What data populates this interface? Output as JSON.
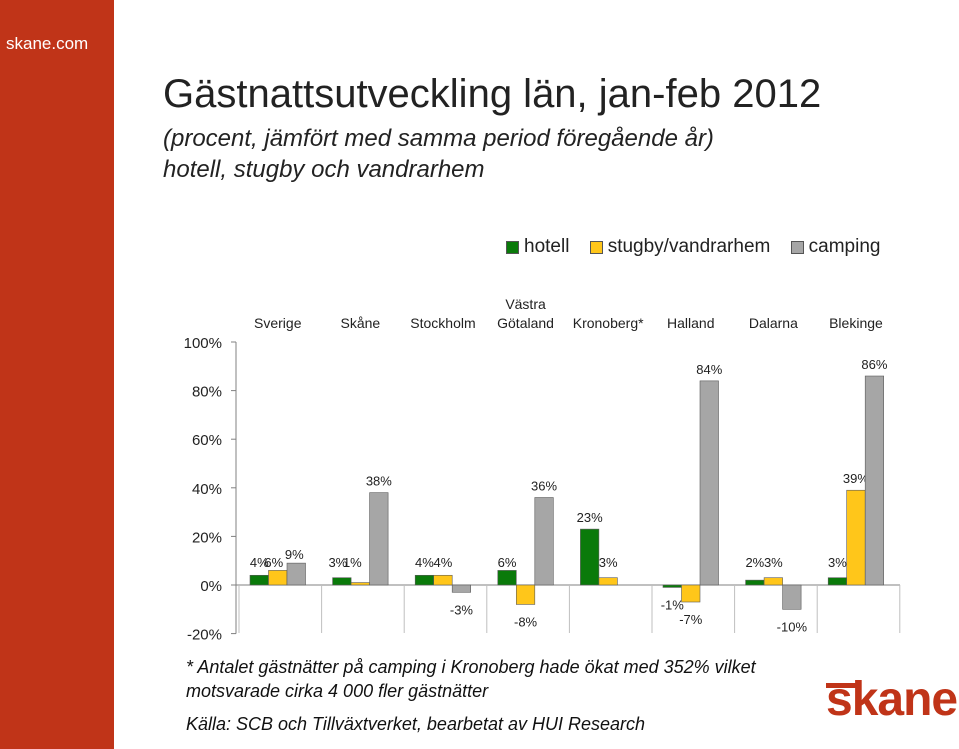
{
  "site_name": "skane.com",
  "title": "Gästnattsutveckling län, jan-feb 2012",
  "subtitle_lines": [
    "(procent, jämfört med samma period föregående år)",
    "hotell, stugby och vandrarhem"
  ],
  "footnote_lines": [
    "* Antalet gästnätter på camping i Kronoberg hade ökat med 352% vilket",
    "motsvarade cirka 4 000 fler gästnätter"
  ],
  "source": "Källa: SCB och Tillväxtverket, bearbetat av HUI Research",
  "logo_text": "skane",
  "chart_data": {
    "type": "bar",
    "categories": [
      [
        "Sverige"
      ],
      [
        "Skåne"
      ],
      [
        "Stockholm"
      ],
      [
        "Västra",
        "Götaland"
      ],
      [
        "Kronoberg*"
      ],
      [
        "Halland"
      ],
      [
        "Dalarna"
      ],
      [
        "Blekinge"
      ]
    ],
    "series": [
      {
        "name": "hotell",
        "color": "#0a7a0a",
        "values": [
          4,
          3,
          4,
          6,
          23,
          -1,
          2,
          3
        ],
        "labels": [
          "4%",
          "3%",
          "4%",
          "6%",
          "23%",
          "-1%",
          "2%",
          "3%"
        ]
      },
      {
        "name": "stugby/vandrarhem",
        "color": "#ffc61a",
        "values": [
          6,
          1,
          4,
          -8,
          3,
          -7,
          3,
          39
        ],
        "labels": [
          "6%",
          "1%",
          "4%",
          "-8%",
          "3%",
          "-7%",
          "3%",
          "39%"
        ]
      },
      {
        "name": "camping",
        "color": "#a6a6a6",
        "values": [
          9,
          38,
          -3,
          36,
          null,
          84,
          -10,
          86
        ],
        "labels": [
          "9%",
          "38%",
          "-3%",
          "36%",
          "",
          "84%",
          "-10%",
          "86%"
        ]
      }
    ],
    "yticks": [
      "100%",
      "80%",
      "60%",
      "40%",
      "20%",
      "0%",
      "-20%"
    ],
    "ytick_values": [
      100,
      80,
      60,
      40,
      20,
      0,
      -20
    ],
    "ylim": [
      -20,
      100
    ],
    "legend_position": "top-right",
    "grid": false
  }
}
